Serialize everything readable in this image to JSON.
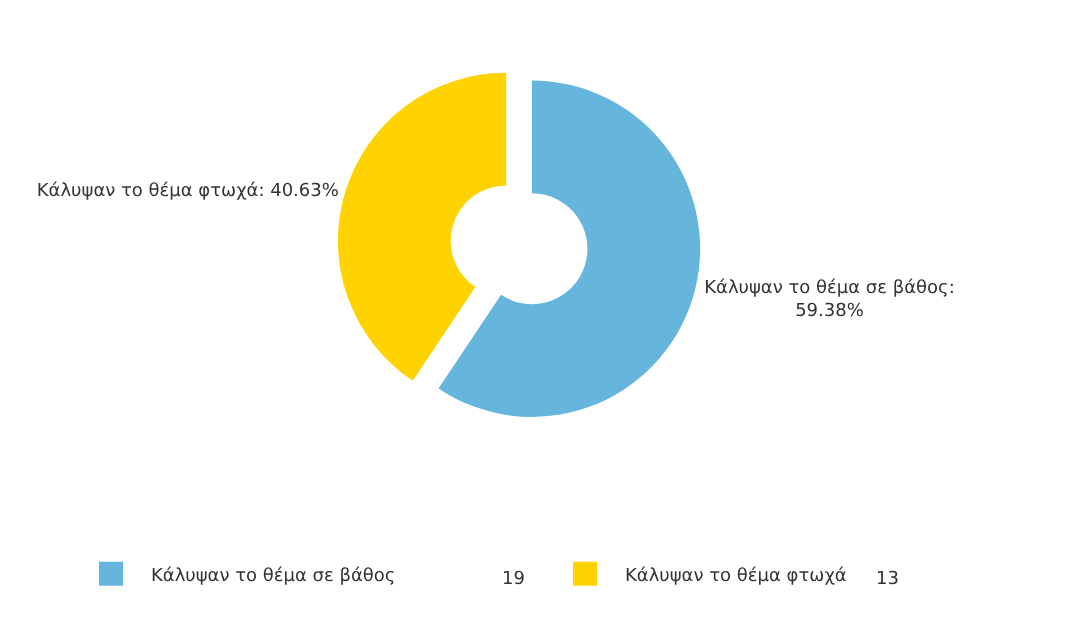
{
  "chart_data": {
    "type": "donut",
    "categories": [
      "Κάλυψαν το θέμα σε βάθος",
      "Κάλυψαν το θέμα φτωχά"
    ],
    "values": [
      59.38,
      40.63
    ],
    "colors": [
      "#66b5dd",
      "#fed300"
    ],
    "value_labels": [
      "Κάλυψαν το θέμα σε βάθος:\n59.38%",
      "Κάλυψαν το θέμα φτωχά: 40.63%"
    ],
    "annotations": [
      "19",
      "13"
    ],
    "legend": "bottom"
  }
}
